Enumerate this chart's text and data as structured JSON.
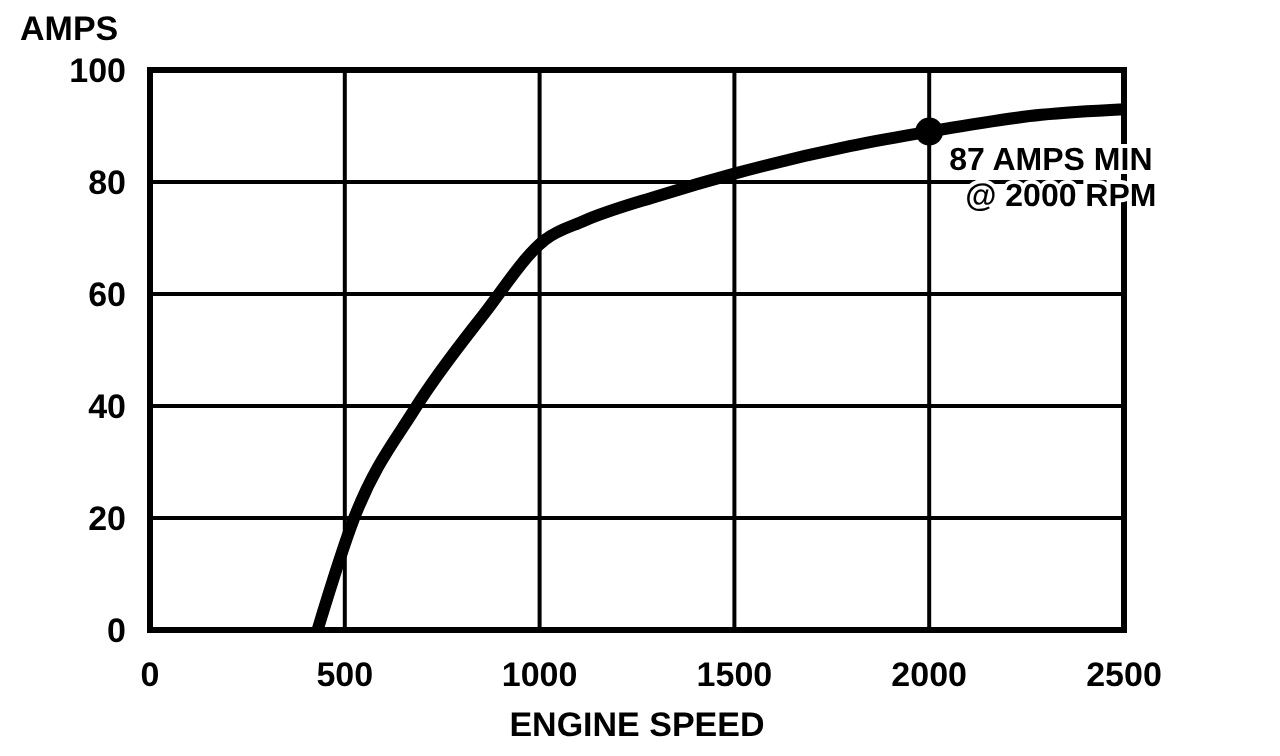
{
  "chart_data": {
    "type": "line",
    "xlabel": "ENGINE SPEED",
    "ylabel": "AMPS",
    "xlim": [
      0,
      2500
    ],
    "xticks": [
      0,
      500,
      1000,
      1500,
      2000,
      2500
    ],
    "ylim": [
      0,
      100
    ],
    "yticks": [
      0,
      20,
      40,
      60,
      80,
      100
    ],
    "grid": true,
    "marker": "none",
    "line_style": "solid",
    "series": [
      {
        "color": "#000000",
        "x": [
          430,
          524,
          680,
          857,
          1014,
          1112,
          1308,
          1500,
          1796,
          2000,
          2288,
          2500
        ],
        "values": [
          0,
          20,
          39.5,
          56.4,
          69.7,
          73,
          77.6,
          81.5,
          86.4,
          89,
          92,
          93
        ]
      },
      {
        "type": "scatter",
        "marker": "circle",
        "color": "#000000",
        "x": [
          2000
        ],
        "values": [
          89
        ]
      }
    ],
    "annotations": [
      {
        "text": "87 AMPS MIN\n@ 2000 RPM",
        "x": 2000,
        "y": 89
      }
    ]
  }
}
